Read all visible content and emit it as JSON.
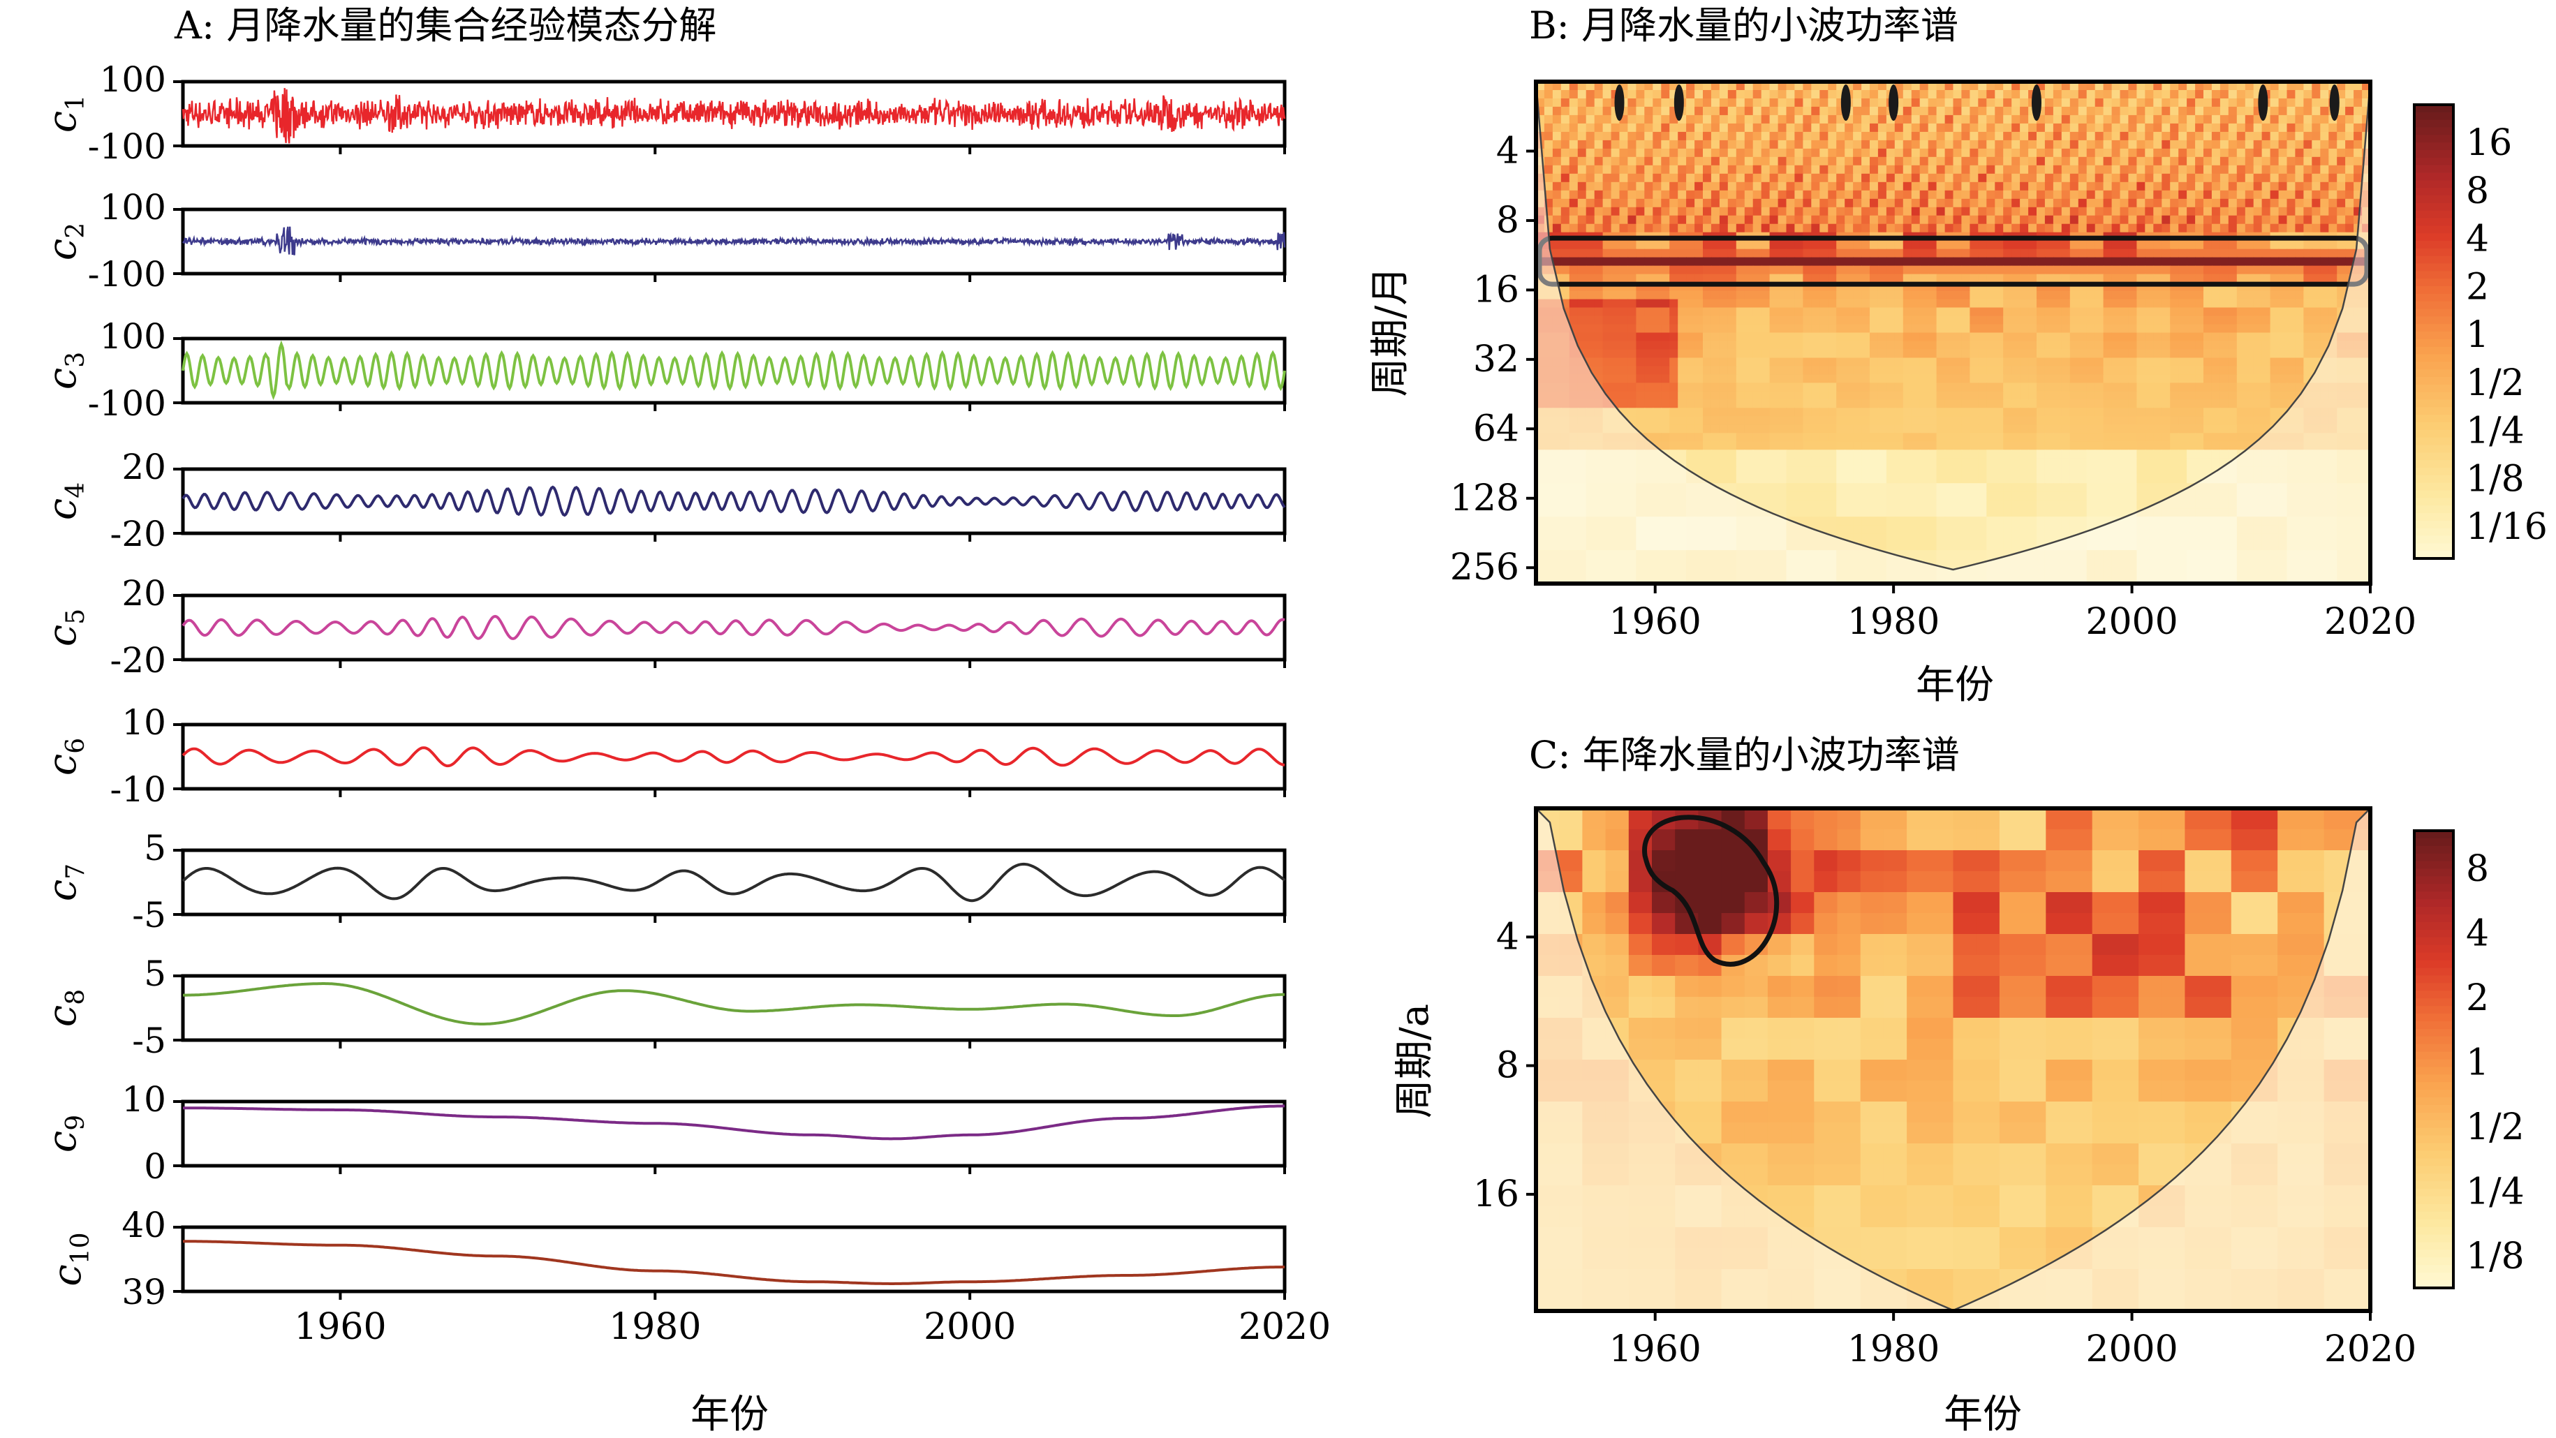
{
  "panels": {
    "a_title": "A: 月降水量的集合经验模态分解",
    "b_title": "B: 月降水量的小波功率谱",
    "c_title": "C: 年降水量的小波功率谱",
    "a_xlabel": "年份",
    "b_xlabel": "年份",
    "c_xlabel": "年份",
    "b_ylabel": "周期/月",
    "c_ylabel": "周期/a"
  },
  "chart_data": [
    {
      "type": "line",
      "panel": "A",
      "title": "A: 月降水量的集合经验模态分解",
      "xlabel": "年份",
      "xlim": [
        1950,
        2020
      ],
      "xticks": [
        "1960",
        "1980",
        "2000",
        "2020"
      ],
      "series": [
        {
          "name": "c1",
          "sub": "1",
          "color": "#e8262b",
          "ylim": [
            -100,
            100
          ],
          "yticks": [
            "100",
            "-100"
          ],
          "kind": "noise",
          "amp": 0.35
        },
        {
          "name": "c2",
          "sub": "2",
          "color": "#3d3a8c",
          "ylim": [
            -100,
            100
          ],
          "yticks": [
            "100",
            "-100"
          ],
          "kind": "noise2",
          "amp": 0.08
        },
        {
          "name": "c3",
          "sub": "3",
          "color": "#7dc242",
          "ylim": [
            -100,
            100
          ],
          "yticks": [
            "100",
            "-100"
          ],
          "kind": "annual",
          "amp": 0.55
        },
        {
          "name": "c4",
          "sub": "4",
          "color": "#2e2a6e",
          "ylim": [
            -20,
            20
          ],
          "yticks": [
            "20",
            "-20"
          ],
          "kind": "osc",
          "amp": 0.45,
          "period": 1.3
        },
        {
          "name": "c5",
          "sub": "5",
          "color": "#c9449a",
          "ylim": [
            -20,
            20
          ],
          "yticks": [
            "20",
            "-20"
          ],
          "kind": "osc",
          "amp": 0.35,
          "period": 2.2
        },
        {
          "name": "c6",
          "sub": "6",
          "color": "#e8262b",
          "ylim": [
            -10,
            10
          ],
          "yticks": [
            "10",
            "-10"
          ],
          "kind": "osc",
          "amp": 0.3,
          "period": 3.6
        },
        {
          "name": "c7",
          "sub": "7",
          "color": "#2b2b2b",
          "ylim": [
            -5,
            5
          ],
          "yticks": [
            "5",
            "-5"
          ],
          "kind": "osc",
          "amp": 0.6,
          "period": 7.5
        },
        {
          "name": "c8",
          "sub": "8",
          "color": "#6aa33a",
          "ylim": [
            -5,
            5
          ],
          "yticks": [
            "5",
            "-5"
          ],
          "x": [
            1950,
            1959,
            1969,
            1978,
            1986,
            1993,
            2000,
            2006,
            2013,
            2020
          ],
          "y": [
            2,
            3.8,
            -2.5,
            2.7,
            -0.5,
            0.5,
            -0.2,
            0.6,
            -1.2,
            2.1
          ]
        },
        {
          "name": "c9",
          "sub": "9",
          "color": "#7b2a86",
          "ylim": [
            0,
            10
          ],
          "yticks": [
            "10",
            "0"
          ],
          "x": [
            1950,
            1960,
            1970,
            1980,
            1990,
            1995,
            2000,
            2010,
            2020
          ],
          "y": [
            9,
            8.7,
            7.6,
            6.6,
            4.8,
            4.2,
            4.8,
            7.4,
            9.3
          ]
        },
        {
          "name": "c10",
          "sub": "10",
          "color": "#a0361f",
          "ylim": [
            39,
            40
          ],
          "yticks": [
            "40",
            "39"
          ],
          "x": [
            1950,
            1960,
            1970,
            1980,
            1990,
            1995,
            2000,
            2010,
            2020
          ],
          "y": [
            39.78,
            39.72,
            39.55,
            39.32,
            39.15,
            39.12,
            39.15,
            39.25,
            39.38
          ]
        }
      ]
    },
    {
      "type": "heatmap",
      "panel": "B",
      "title": "B: 月降水量的小波功率谱",
      "xlabel": "年份",
      "ylabel": "周期/月",
      "xlim": [
        1950,
        2020
      ],
      "xticks": [
        "1960",
        "1980",
        "2000",
        "2020"
      ],
      "yticks": [
        "4",
        "8",
        "16",
        "32",
        "64",
        "128",
        "256"
      ],
      "ytick_values": [
        4,
        8,
        16,
        32,
        64,
        128,
        256
      ],
      "ylim_period": [
        2,
        300
      ],
      "y_scale": "log2",
      "colorbar": [
        "16",
        "8",
        "4",
        "2",
        "1",
        "1/2",
        "1/4",
        "1/8",
        "1/16"
      ],
      "annual_band_period": 12
    },
    {
      "type": "heatmap",
      "panel": "C",
      "title": "C: 年降水量的小波功率谱",
      "xlabel": "年份",
      "ylabel": "周期/a",
      "xlim": [
        1950,
        2020
      ],
      "xticks": [
        "1960",
        "1980",
        "2000",
        "2020"
      ],
      "yticks": [
        "4",
        "8",
        "16"
      ],
      "ytick_values": [
        4,
        8,
        16
      ],
      "ylim_period": [
        2,
        30
      ],
      "y_scale": "log2",
      "colorbar": [
        "8",
        "4",
        "2",
        "1",
        "1/2",
        "1/4",
        "1/8"
      ],
      "hotspot": {
        "year": 1965,
        "period": 3
      }
    }
  ]
}
